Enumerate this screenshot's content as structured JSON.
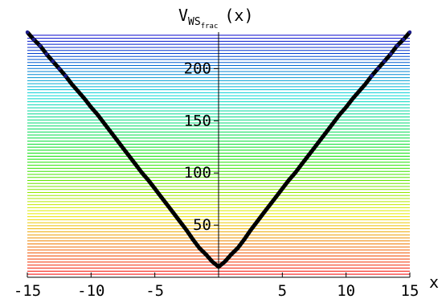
{
  "chart_data": {
    "type": "line",
    "title_main": "V",
    "title_sub": "WS",
    "title_subsub": "frac",
    "title_suffix": "(x)",
    "xlabel": "x",
    "ylabel": "",
    "xlim": [
      -15,
      15
    ],
    "ylim": [
      0,
      235
    ],
    "x_ticks": [
      -15,
      -10,
      -5,
      5,
      10,
      15
    ],
    "x_tick_labels": [
      "-15",
      "-10",
      "-5",
      "5",
      "10",
      "15"
    ],
    "y_ticks": [
      50,
      100,
      150,
      200
    ],
    "y_tick_labels": [
      "50",
      "100",
      "150",
      "200"
    ],
    "energy_levels": {
      "count": 80,
      "min": 3,
      "max": 232,
      "color_scale": "rainbow: red (low) through yellow, green, cyan to blue (high)"
    },
    "series": [
      {
        "x": [
          -15,
          -14.5,
          -14,
          -13.5,
          -13,
          -12.5,
          -12,
          -11.5,
          -11,
          -10.5,
          -10,
          -9.5,
          -9,
          -8.5,
          -8,
          -7.5,
          -7,
          -6.5,
          -6,
          -5.5,
          -5,
          -4.5,
          -4,
          -3.5,
          -3,
          -2.5,
          -2,
          -1.5,
          -1,
          -0.5,
          0,
          0.5,
          1,
          1.5,
          2,
          2.5,
          3,
          3.5,
          4,
          4.5,
          5,
          5.5,
          6,
          6.5,
          7,
          7.5,
          8,
          8.5,
          9,
          9.5,
          10,
          10.5,
          11,
          11.5,
          12,
          12.5,
          13,
          13.5,
          14,
          14.5,
          15
        ],
        "y": [
          235,
          228,
          222,
          214,
          207,
          200,
          193,
          185,
          178,
          171,
          163,
          156,
          148,
          140,
          132,
          124,
          116,
          108,
          100,
          93,
          85,
          77,
          69,
          61,
          53,
          45,
          36,
          28,
          22,
          15,
          10,
          15,
          22,
          28,
          36,
          45,
          53,
          61,
          69,
          77,
          85,
          93,
          100,
          108,
          116,
          124,
          132,
          140,
          148,
          156,
          163,
          171,
          178,
          185,
          193,
          200,
          207,
          214,
          222,
          228,
          235
        ]
      }
    ],
    "colors": {
      "curve": "#000000",
      "curve_top": "#1a1a8c",
      "axes": "#000000",
      "tick_text": "#000000"
    }
  }
}
